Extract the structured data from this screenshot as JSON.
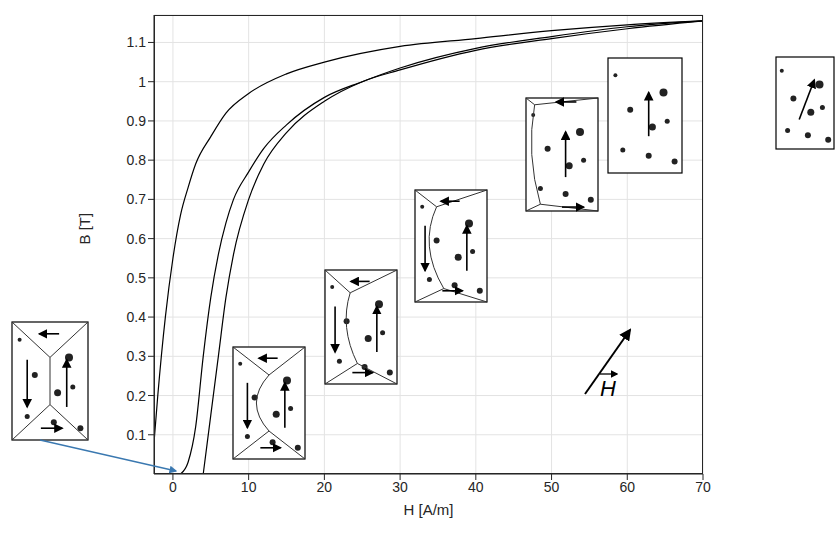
{
  "chart_data": {
    "type": "line",
    "xlabel": "H [A/m]",
    "ylabel": "B [T]",
    "xlim": [
      -2.5,
      70
    ],
    "xticks": [
      0,
      10,
      20,
      30,
      40,
      50,
      60,
      70
    ],
    "ylim": [
      0,
      1.17
    ],
    "yticks": [
      0.1,
      0.2,
      0.3,
      0.4,
      0.5,
      0.6,
      0.7,
      0.8,
      0.9,
      1,
      1.1
    ],
    "grid": true,
    "series": [
      {
        "color": "#000000",
        "x": [
          -2.5,
          -2,
          -1,
          0,
          1,
          2,
          3,
          5,
          7,
          10,
          15,
          20,
          30,
          40,
          50,
          60,
          70
        ],
        "values": [
          0.08,
          0.2,
          0.4,
          0.55,
          0.66,
          0.73,
          0.79,
          0.86,
          0.92,
          0.97,
          1.02,
          1.05,
          1.09,
          1.11,
          1.13,
          1.145,
          1.155
        ]
      },
      {
        "color": "#000000",
        "x": [
          4,
          5,
          6,
          7,
          8,
          10,
          12,
          15,
          20,
          25,
          30,
          40,
          50,
          60,
          70
        ],
        "values": [
          0,
          0.15,
          0.3,
          0.45,
          0.56,
          0.7,
          0.79,
          0.87,
          0.95,
          1.0,
          1.03,
          1.08,
          1.11,
          1.135,
          1.155
        ]
      },
      {
        "color": "#000000",
        "x": [
          1,
          2,
          3,
          4,
          5,
          6,
          7,
          8,
          10,
          12,
          15,
          20,
          25,
          30,
          40,
          50,
          60,
          70
        ],
        "values": [
          0,
          0.03,
          0.12,
          0.3,
          0.45,
          0.56,
          0.64,
          0.7,
          0.77,
          0.83,
          0.89,
          0.96,
          1.0,
          1.035,
          1.085,
          1.115,
          1.14,
          1.155
        ]
      }
    ],
    "annotations": [
      {
        "text": "H"
      }
    ]
  }
}
